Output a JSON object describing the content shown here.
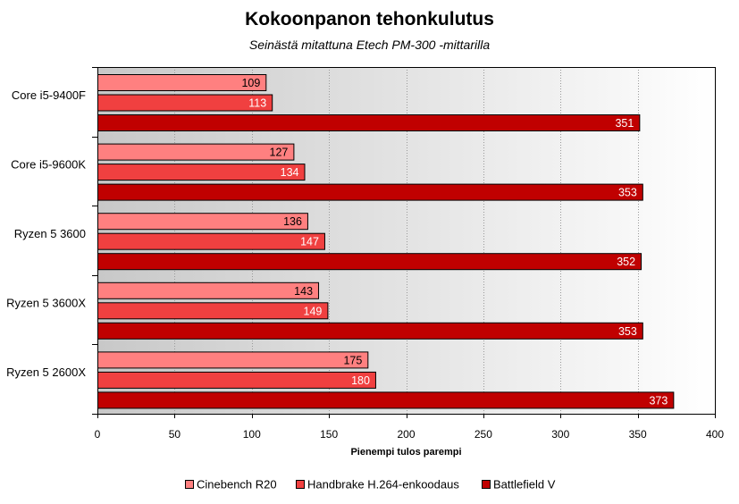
{
  "chart_data": {
    "type": "bar",
    "orientation": "horizontal",
    "title": "Kokoonpanon tehonkulutus",
    "subtitle": "Seinästä mitattuna Etech PM-300 -mittarilla",
    "xlabel": "Pienempi tulos parempi",
    "ylabel": "",
    "xlim": [
      0,
      400
    ],
    "xticks": [
      0,
      50,
      100,
      150,
      200,
      250,
      300,
      350,
      400
    ],
    "grid": true,
    "legend_position": "bottom",
    "categories": [
      "Core i5-9400F",
      "Core i5-9600K",
      "Ryzen 5 3600",
      "Ryzen 5 3600X",
      "Ryzen 5 2600X"
    ],
    "series": [
      {
        "name": "Cinebench R20",
        "color": "#ff8080",
        "label_color": "#000000",
        "values": [
          109,
          127,
          136,
          143,
          175
        ]
      },
      {
        "name": "Handbrake H.264-enkoodaus",
        "color": "#f04040",
        "label_color": "#ffffff",
        "values": [
          113,
          134,
          147,
          149,
          180
        ]
      },
      {
        "name": "Battlefield V",
        "color": "#c00000",
        "label_color": "#ffffff",
        "values": [
          351,
          353,
          352,
          353,
          373
        ]
      }
    ]
  }
}
